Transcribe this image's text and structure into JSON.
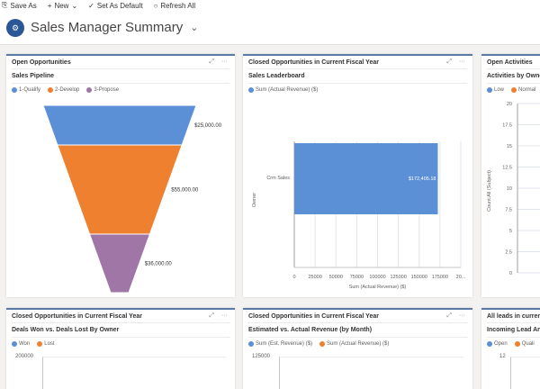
{
  "toolbar": {
    "items": [
      {
        "label": "Save As",
        "icon": "save-as-icon"
      },
      {
        "label": "New",
        "icon": "plus-icon"
      },
      {
        "label": "Set As Default",
        "icon": "check-icon"
      },
      {
        "label": "Refresh All",
        "icon": "refresh-icon"
      }
    ]
  },
  "header": {
    "title": "Sales Manager Summary"
  },
  "colors": {
    "blue": "#5b8fd6",
    "orange": "#ef8030",
    "purple": "#a076a6",
    "accent": "#2b5797"
  },
  "cards": [
    {
      "header": "Open Opportunities",
      "subtitle": "Sales Pipeline",
      "legend": [
        "1-Qualify",
        "2-Develop",
        "3-Propose"
      ]
    },
    {
      "header": "Closed Opportunities in Current Fiscal Year",
      "subtitle": "Sales Leaderboard",
      "legend": [
        "Sum (Actual Revenue) ($)"
      ]
    },
    {
      "header": "Open Activities",
      "subtitle": "Activities by Owner",
      "legend": [
        "Low",
        "Normal"
      ]
    },
    {
      "header": "Closed Opportunities in Current Fiscal Year",
      "subtitle": "Deals Won vs. Deals Lost By Owner",
      "legend": [
        "Won",
        "Lost"
      ],
      "ytop": "200000"
    },
    {
      "header": "Closed Opportunities in Current Fiscal Year",
      "subtitle": "Estimated vs. Actual Revenue (by Month)",
      "legend": [
        "Sum (Est. Revenue) ($)",
        "Sum (Actual Revenue) ($)"
      ],
      "ytop": "125000"
    },
    {
      "header": "All leads in current",
      "subtitle": "Incoming Lead Ana",
      "legend": [
        "Open",
        "Quali"
      ],
      "ytop": "12"
    }
  ],
  "chart_data": [
    {
      "type": "funnel",
      "categories": [
        "1-Qualify",
        "2-Develop",
        "3-Propose"
      ],
      "values": [
        25000,
        55000,
        36000
      ],
      "labels": [
        "$25,000.00",
        "$55,000.00",
        "$36,000.00"
      ]
    },
    {
      "type": "bar",
      "orientation": "horizontal",
      "categories": [
        "Crm Sales"
      ],
      "values": [
        172405.18
      ],
      "value_label": "$172,405.18",
      "xlabel": "Sum (Actual Revenue) ($)",
      "ylabel": "Owner",
      "xticks": [
        "0",
        "25000",
        "50000",
        "75000",
        "100000",
        "125000",
        "150000",
        "175000",
        "20..."
      ],
      "xlim": [
        0,
        200000
      ],
      "grid": true
    },
    {
      "type": "bar",
      "ylabel": "Count:All (Subject)",
      "yticks": [
        "0",
        "2.5",
        "5",
        "7.5",
        "10",
        "12.5",
        "15",
        "17.5",
        "20"
      ],
      "ylim": [
        0,
        20
      ],
      "grid": true
    }
  ]
}
